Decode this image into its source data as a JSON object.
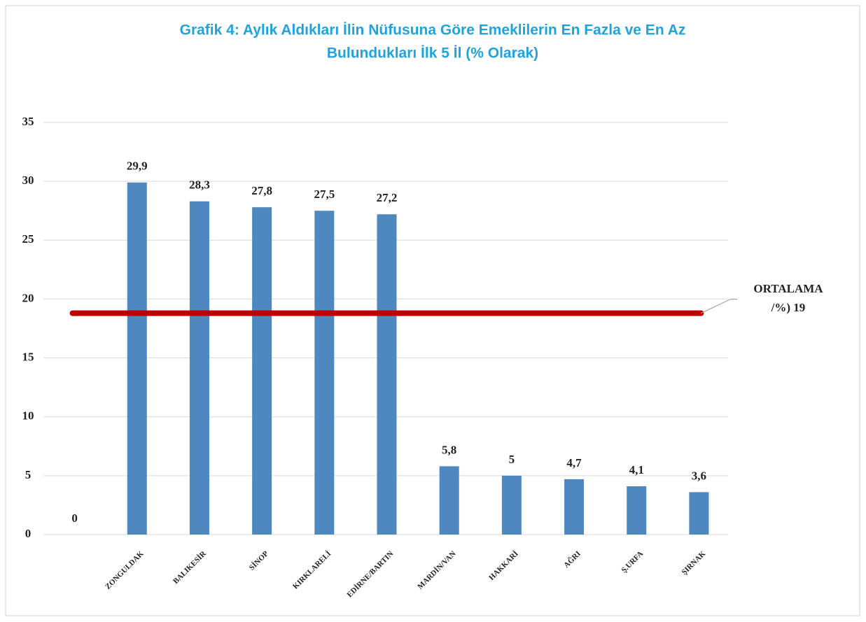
{
  "chart_data": {
    "type": "bar",
    "title": [
      "Grafik  4: Aylık Aldıkları  İlin   Nüfusuna  Göre  Emeklilerin  En Fazla ve En Az",
      "Bulundukları İlk 5 İl   (% Olarak)"
    ],
    "categories": [
      null,
      "ZONGULDAK",
      "BALIKESİR",
      "SİNOP",
      "KIRKLARELİ",
      "EDİRNE/BARTIN",
      "MARDİN/VAN",
      "HAKKARİ",
      "AĞRI",
      "Ş.URFA",
      "ŞIRNAK"
    ],
    "values": [
      0,
      29.9,
      28.3,
      27.8,
      27.5,
      27.2,
      5.8,
      5,
      4.7,
      4.1,
      3.6
    ],
    "value_labels": [
      "0",
      "29,9",
      "28,3",
      "27,8",
      "27,5",
      "27,2",
      "5,8",
      "5",
      "4,7",
      "4,1",
      "3,6"
    ],
    "color": "#4f88bf",
    "ylim": [
      0,
      35
    ],
    "yticks": [
      0,
      5,
      10,
      15,
      20,
      25,
      30,
      35
    ],
    "grid": true,
    "average_line": {
      "value": 18.8,
      "color": "#c00000",
      "label": [
        "ORTALAMA",
        "/%) 19"
      ]
    }
  }
}
